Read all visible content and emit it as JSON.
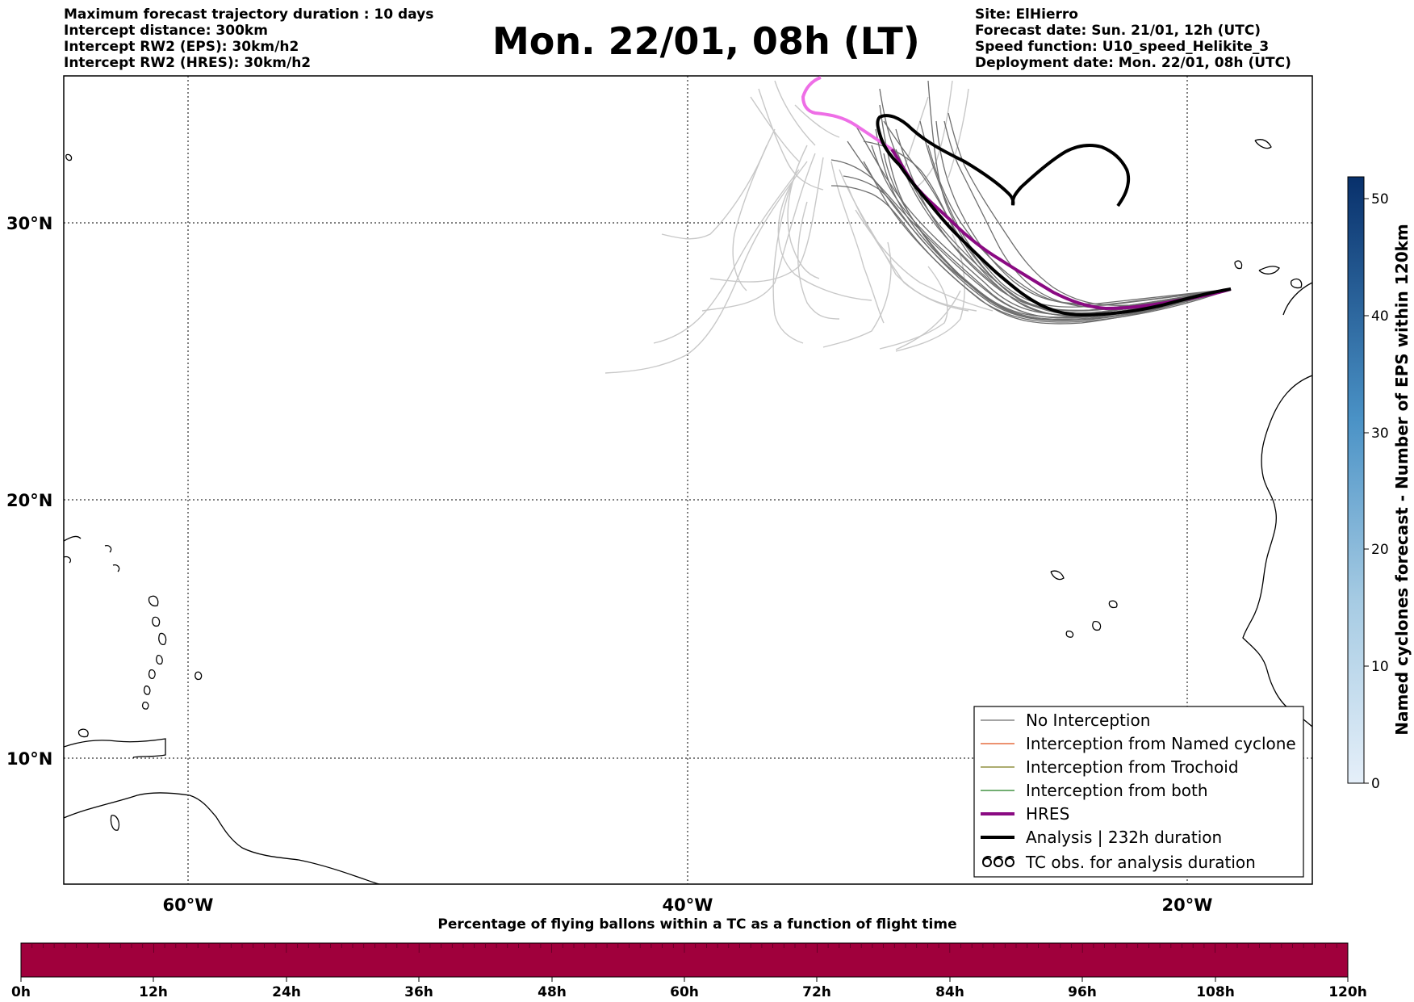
{
  "header": {
    "left_lines": [
      "Maximum forecast trajectory duration : 10 days",
      "Intercept distance: 300km",
      "Intercept RW2 (EPS):  30km/h2",
      "Intercept RW2 (HRES): 30km/h2"
    ],
    "title": "Mon. 22/01, 08h (LT)",
    "right_lines": [
      "Site: ElHierro",
      "Forecast date: Sun. 21/01, 12h (UTC)",
      "Speed function: U10_speed_Helikite_3",
      "Deployment date: Mon. 22/01, 08h (UTC)"
    ]
  },
  "map": {
    "lat_labels": [
      "30°N",
      "20°N",
      "10°N"
    ],
    "lon_labels": [
      "60°W",
      "40°W",
      "20°W"
    ]
  },
  "legend": {
    "items": [
      {
        "label": "No Interception",
        "color": "#6e6e6e",
        "style": "thin"
      },
      {
        "label": "Interception from Named cyclone",
        "color": "#e0521b",
        "style": "thin"
      },
      {
        "label": "Interception from Trochoid",
        "color": "#7a7a1a",
        "style": "thin"
      },
      {
        "label": "Interception from both",
        "color": "#1e7d1e",
        "style": "thin"
      },
      {
        "label": "HRES",
        "color": "#8a0a82",
        "style": "thick"
      },
      {
        "label": "Analysis | 232h duration",
        "color": "#000000",
        "style": "thick"
      },
      {
        "label": "TC obs. for analysis duration",
        "icon": "cyclone-icon",
        "style": "symbol"
      }
    ]
  },
  "colorbar": {
    "label": "Named cyclones forecast - Number of EPS within 120km",
    "ticks": [
      "0",
      "10",
      "20",
      "30",
      "40",
      "50"
    ],
    "color_low": "#e5eff9",
    "color_high": "#08306b"
  },
  "time_bar": {
    "title": "Percentage of flying ballons within a TC as a function of flight time",
    "ticks": [
      "0h",
      "12h",
      "24h",
      "36h",
      "48h",
      "60h",
      "72h",
      "84h",
      "96h",
      "108h",
      "120h"
    ],
    "color": "#a0003c"
  }
}
